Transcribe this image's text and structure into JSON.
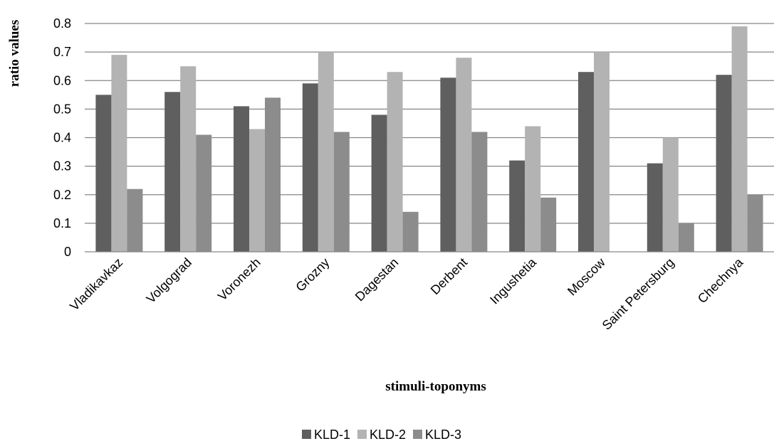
{
  "chart_data": {
    "type": "bar",
    "title": "",
    "xlabel": "stimuli-toponyms",
    "ylabel": "ratio values",
    "ylim": [
      0,
      0.8
    ],
    "yticks": [
      "0",
      "0.1",
      "0.2",
      "0.3",
      "0.4",
      "0.5",
      "0.6",
      "0.7",
      "0.8"
    ],
    "grid": "horizontal",
    "legend_position": "bottom",
    "categories": [
      "Vladikavkaz",
      "Volgograd",
      "Voronezh",
      "Grozny",
      "Dagestan",
      "Derbent",
      "Ingushetia",
      "Moscow",
      "Saint Petersburg",
      "Chechnya"
    ],
    "series": [
      {
        "name": "KLD-1",
        "color": "#5f5f5f",
        "values": [
          0.55,
          0.56,
          0.51,
          0.59,
          0.48,
          0.61,
          0.32,
          0.63,
          0.31,
          0.62
        ]
      },
      {
        "name": "KLD-2",
        "color": "#b3b3b3",
        "values": [
          0.69,
          0.65,
          0.43,
          0.7,
          0.63,
          0.68,
          0.44,
          0.7,
          0.4,
          0.79
        ]
      },
      {
        "name": "KLD-3",
        "color": "#8c8c8c",
        "values": [
          0.22,
          0.41,
          0.54,
          0.42,
          0.14,
          0.42,
          0.19,
          0,
          0.1,
          0.2
        ]
      }
    ]
  }
}
